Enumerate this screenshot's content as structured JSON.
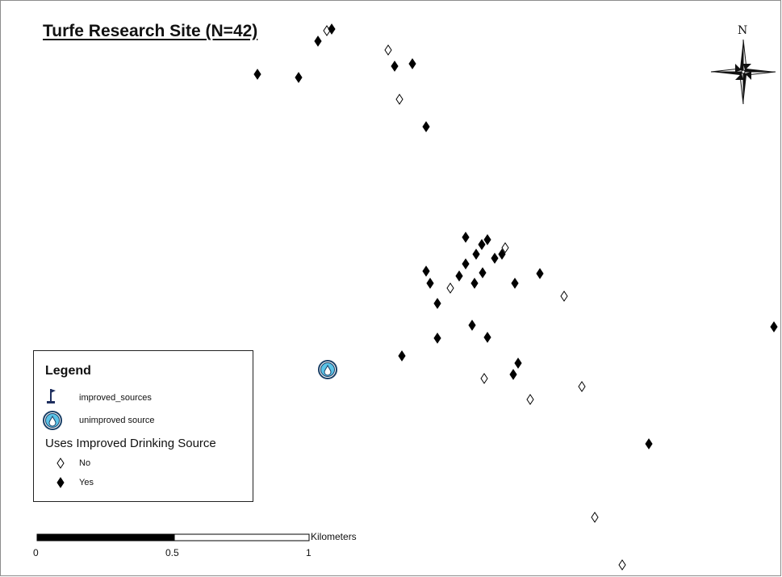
{
  "map": {
    "title": "Turfe Research Site (N=42)",
    "north_label": "N"
  },
  "legend": {
    "title": "Legend",
    "items": [
      {
        "label": "improved_sources",
        "icon": "flag-icon"
      },
      {
        "label": "unimproved source",
        "icon": "water-drop-icon"
      }
    ],
    "group_title": "Uses Improved Drinking Source",
    "group_items": [
      {
        "label": "No",
        "icon": "hollow-diamond-icon"
      },
      {
        "label": "Yes",
        "icon": "filled-diamond-icon"
      }
    ]
  },
  "scale_bar": {
    "unit": "Kilometers",
    "ticks": [
      "0",
      "0.5",
      "1"
    ]
  },
  "colors": {
    "yes_marker": "#000000",
    "no_marker": "#ffffff",
    "water_fill": "#5bc4e8",
    "water_outline": "#1a3f66",
    "flag": "#1f2f5f"
  }
}
